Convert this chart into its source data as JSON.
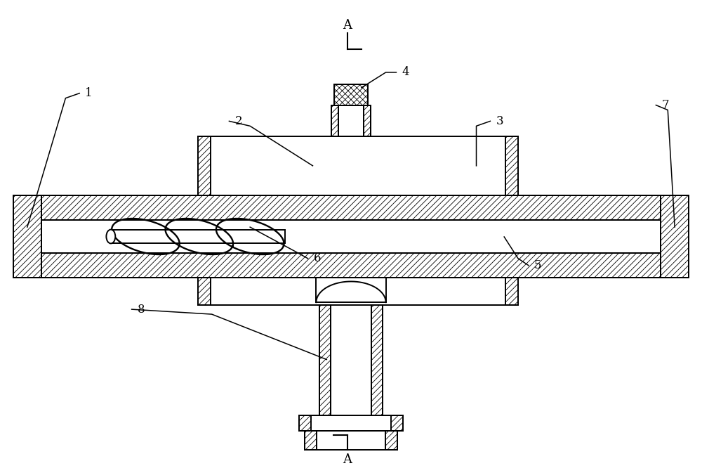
{
  "bg_color": "#ffffff",
  "line_color": "#000000",
  "figsize": [
    10.0,
    6.73
  ],
  "dpi": 100,
  "lw": 1.4,
  "hatch": "////",
  "hatch_x": "xxxx"
}
